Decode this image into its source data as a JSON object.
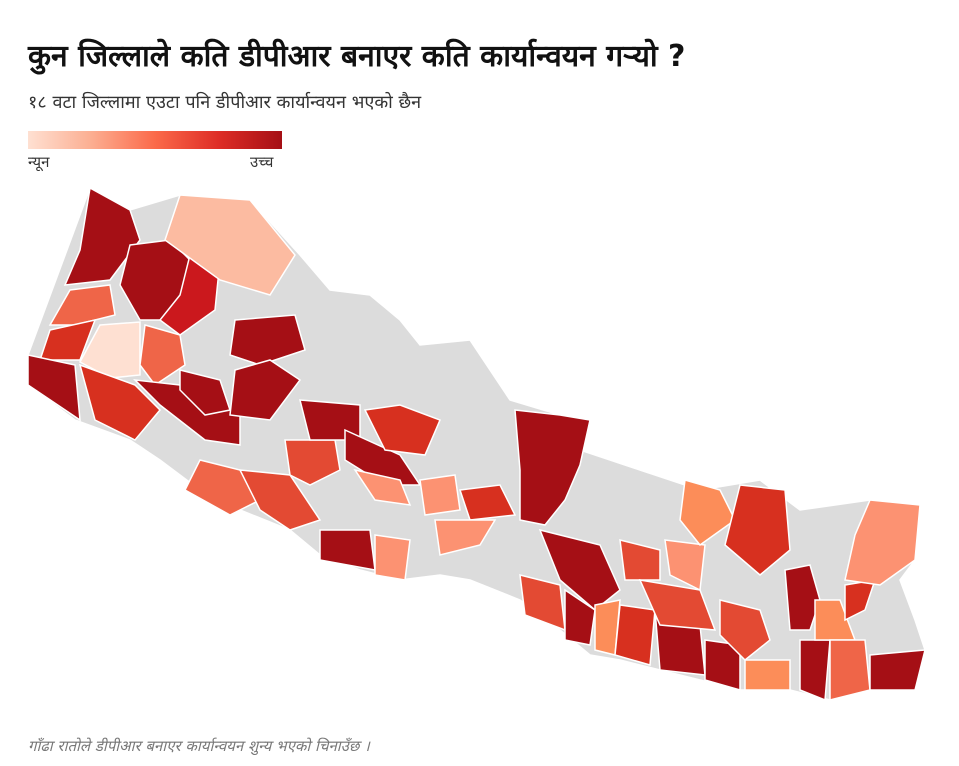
{
  "title": "कुन जिल्लाले कति डीपीआर बनाएर कति कार्यान्वयन गऱ्यो ?",
  "subtitle": "१८ वटा जिल्लामा एउटा पनि डीपीआर कार्यान्वयन भएको छैन",
  "legend": {
    "low": "न्यून",
    "high": "उच्च"
  },
  "note": "गाँढा रातोले डीपीआर बनाएर कार्यान्वयन शुन्य भएको चिनाउँछ ।"
}
